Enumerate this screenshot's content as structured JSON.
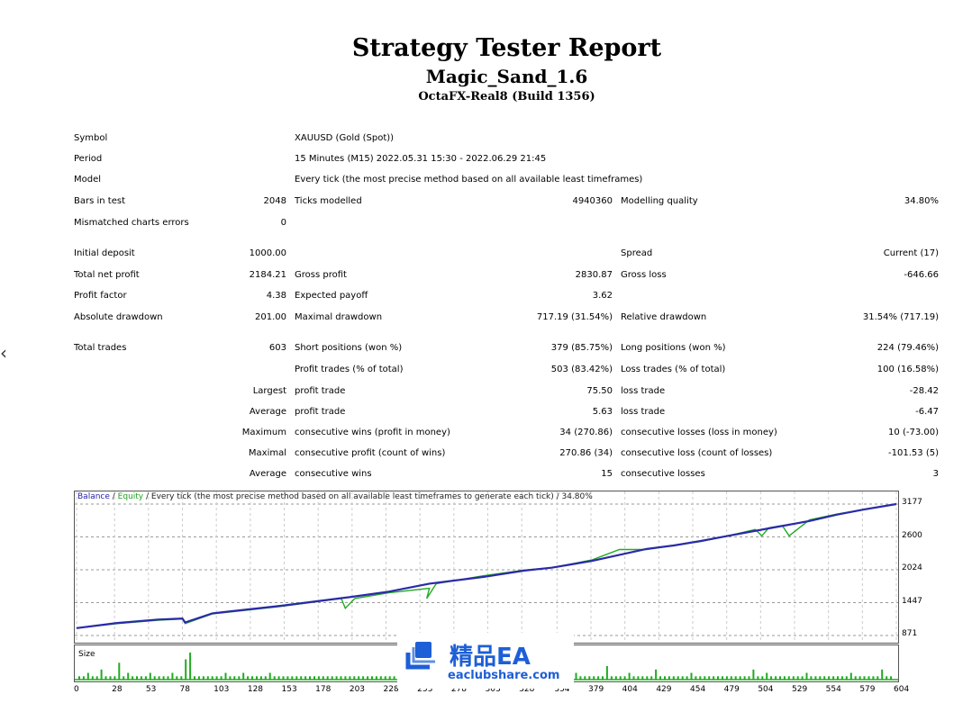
{
  "header": {
    "title": "Strategy Tester Report",
    "ea_name": "Magic_Sand_1.6",
    "server": "OctaFX-Real8 (Build 1356)"
  },
  "info": {
    "symbol_label": "Symbol",
    "symbol": "XAUUSD (Gold (Spot))",
    "period_label": "Period",
    "period": "15 Minutes (M15) 2022.05.31 15:30 - 2022.06.29 21:45",
    "model_label": "Model",
    "model": "Every tick (the most precise method based on all available least timeframes)",
    "bars_label": "Bars in test",
    "bars": "2048",
    "ticks_label": "Ticks modelled",
    "ticks": "4940360",
    "quality_label": "Modelling quality",
    "quality": "34.80%",
    "mismatch_label": "Mismatched charts errors",
    "mismatch": "0"
  },
  "results": {
    "initial_deposit_label": "Initial deposit",
    "initial_deposit": "1000.00",
    "spread_label": "Spread",
    "spread": "Current (17)",
    "net_profit_label": "Total net profit",
    "net_profit": "2184.21",
    "gross_profit_label": "Gross profit",
    "gross_profit": "2830.87",
    "gross_loss_label": "Gross loss",
    "gross_loss": "-646.66",
    "profit_factor_label": "Profit factor",
    "profit_factor": "4.38",
    "expected_payoff_label": "Expected payoff",
    "expected_payoff": "3.62",
    "abs_dd_label": "Absolute drawdown",
    "abs_dd": "201.00",
    "max_dd_label": "Maximal drawdown",
    "max_dd": "717.19 (31.54%)",
    "rel_dd_label": "Relative drawdown",
    "rel_dd": "31.54% (717.19)"
  },
  "trades": {
    "total_label": "Total trades",
    "total": "603",
    "short_label": "Short positions (won %)",
    "short": "379 (85.75%)",
    "long_label": "Long positions (won %)",
    "long": "224 (79.46%)",
    "profit_trades_label": "Profit trades (% of total)",
    "profit_trades": "503 (83.42%)",
    "loss_trades_label": "Loss trades (% of total)",
    "loss_trades": "100 (16.58%)",
    "largest": "Largest",
    "largest_profit_label": "profit trade",
    "largest_profit": "75.50",
    "largest_loss_label": "loss trade",
    "largest_loss": "-28.42",
    "average": "Average",
    "avg_profit_label": "profit trade",
    "avg_profit": "5.63",
    "avg_loss_label": "loss trade",
    "avg_loss": "-6.47",
    "maximum": "Maximum",
    "max_cons_wins_label": "consecutive wins (profit in money)",
    "max_cons_wins": "34 (270.86)",
    "max_cons_losses_label": "consecutive losses (loss in money)",
    "max_cons_losses": "10 (-73.00)",
    "maximal": "Maximal",
    "maximal_cons_profit_label": "consecutive profit (count of wins)",
    "maximal_cons_profit": "270.86 (34)",
    "maximal_cons_loss_label": "consecutive loss (count of losses)",
    "maximal_cons_loss": "-101.53 (5)",
    "average2": "Average",
    "avg_cons_wins_label": "consecutive wins",
    "avg_cons_wins": "15",
    "avg_cons_losses_label": "consecutive losses",
    "avg_cons_losses": "3"
  },
  "nav": {
    "prev_glyph": "‹"
  },
  "watermark": {
    "cn": "精品EA",
    "url": "eaclubshare.com"
  },
  "colors": {
    "balance": "#2a2aa8",
    "equity": "#22aa22",
    "size_bars": "#22aa22"
  },
  "chart_data": {
    "type": "line",
    "legend": {
      "balance": "Balance",
      "sep1": " / ",
      "equity": "Equity",
      "rest": " / Every tick (the most precise method based on all available least timeframes to generate each tick) / 34.80%"
    },
    "ylim": [
      871,
      3177
    ],
    "y_ticks": [
      "3177",
      "2600",
      "2024",
      "1447",
      "871"
    ],
    "x_ticks": [
      "0",
      "28",
      "53",
      "78",
      "103",
      "128",
      "153",
      "178",
      "203",
      "228",
      "253",
      "278",
      "303",
      "328",
      "354",
      "379",
      "404",
      "429",
      "454",
      "479",
      "504",
      "529",
      "554",
      "579",
      "604"
    ],
    "xlim": [
      0,
      604
    ],
    "series": [
      {
        "name": "Balance",
        "x": [
          0,
          30,
          60,
          78,
          80,
          100,
          150,
          200,
          230,
          260,
          300,
          330,
          350,
          380,
          420,
          440,
          460,
          480,
          510,
          540,
          560,
          580,
          604
        ],
        "y": [
          1000,
          1090,
          1150,
          1170,
          1100,
          1260,
          1390,
          1540,
          1640,
          1780,
          1900,
          2010,
          2060,
          2180,
          2390,
          2450,
          2530,
          2620,
          2750,
          2880,
          2990,
          3080,
          3177
        ]
      },
      {
        "name": "Equity",
        "x": [
          0,
          30,
          60,
          78,
          80,
          100,
          150,
          195,
          198,
          205,
          230,
          260,
          258,
          265,
          300,
          330,
          350,
          380,
          400,
          420,
          440,
          460,
          480,
          500,
          505,
          510,
          520,
          525,
          540,
          560,
          580,
          604
        ],
        "y": [
          1000,
          1080,
          1140,
          1160,
          1080,
          1250,
          1380,
          1520,
          1350,
          1520,
          1620,
          1700,
          1520,
          1780,
          1920,
          2020,
          2060,
          2200,
          2380,
          2380,
          2450,
          2520,
          2620,
          2730,
          2620,
          2760,
          2800,
          2620,
          2900,
          3000,
          3080,
          3177
        ]
      }
    ],
    "size_label": "Size",
    "size_values": [
      1,
      1,
      2,
      1,
      1,
      3,
      1,
      1,
      1,
      5,
      1,
      2,
      1,
      1,
      1,
      1,
      2,
      1,
      1,
      1,
      1,
      2,
      1,
      1,
      6,
      8,
      1,
      1,
      1,
      1,
      1,
      1,
      1,
      2,
      1,
      1,
      1,
      2,
      1,
      1,
      1,
      1,
      1,
      2,
      1,
      1,
      1,
      1,
      1,
      1,
      1,
      1,
      1,
      1,
      1,
      1,
      1,
      1,
      1,
      1,
      1,
      1,
      1,
      1,
      1,
      1,
      1,
      1,
      1,
      1,
      1,
      1,
      3,
      1,
      1,
      1,
      1,
      1,
      1,
      1,
      1,
      2,
      1,
      1,
      1,
      6,
      1,
      1,
      1,
      1,
      1,
      1,
      1,
      1,
      2,
      1,
      1,
      1,
      1,
      1,
      1,
      1,
      1,
      1,
      1,
      1,
      1,
      1,
      1,
      1,
      1,
      1,
      2,
      1,
      1,
      1,
      1,
      1,
      1,
      4,
      1,
      1,
      1,
      1,
      2,
      1,
      1,
      1,
      1,
      1,
      3,
      1,
      1,
      1,
      1,
      1,
      1,
      1,
      2,
      1,
      1,
      1,
      1,
      1,
      1,
      1,
      1,
      1,
      1,
      1,
      1,
      1,
      3,
      1,
      1,
      2,
      1,
      1,
      1,
      1,
      1,
      1,
      1,
      1,
      2,
      1,
      1,
      1,
      1,
      1,
      1,
      1,
      1,
      1,
      2,
      1,
      1,
      1,
      1,
      1,
      1,
      3,
      1,
      1
    ]
  }
}
